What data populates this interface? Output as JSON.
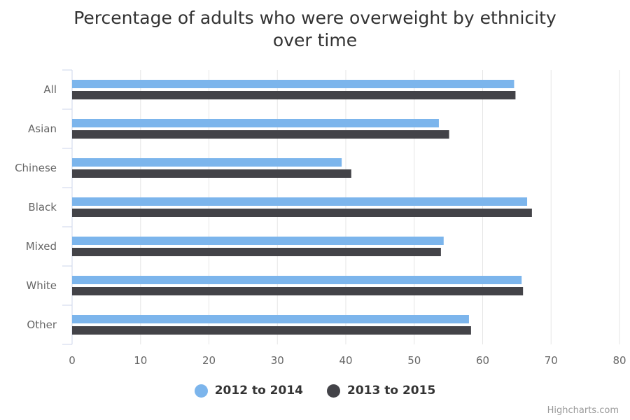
{
  "chart_data": {
    "type": "bar",
    "orientation": "horizontal",
    "title": [
      "Percentage of adults who were overweight by ethnicity",
      "over time"
    ],
    "categories": [
      "All",
      "Asian",
      "Chinese",
      "Black",
      "Mixed",
      "White",
      "Other"
    ],
    "series": [
      {
        "name": "2012 to 2014",
        "color": "#7cb5ec",
        "values": [
          64.6,
          53.6,
          39.4,
          66.5,
          54.3,
          65.7,
          58.0
        ]
      },
      {
        "name": "2013 to 2015",
        "color": "#434348",
        "values": [
          64.8,
          55.1,
          40.8,
          67.2,
          53.9,
          65.9,
          58.3
        ]
      }
    ],
    "xlim": [
      0,
      80
    ],
    "xticks": [
      "0",
      "10",
      "20",
      "30",
      "40",
      "50",
      "60",
      "70",
      "80"
    ],
    "grid": true,
    "legend_position": "bottom-center"
  },
  "credits": "Highcharts.com"
}
